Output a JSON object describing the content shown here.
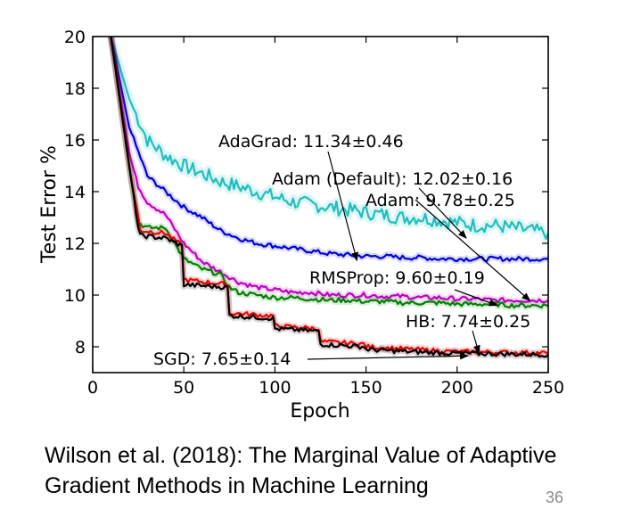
{
  "chart_data": {
    "type": "line",
    "xlabel": "Epoch",
    "ylabel": "Test Error %",
    "xlim": [
      0,
      250
    ],
    "ylim": [
      7,
      20
    ],
    "xticks": [
      "0",
      "50",
      "100",
      "150",
      "200",
      "250"
    ],
    "yticks": [
      "8",
      "10",
      "12",
      "14",
      "16",
      "18",
      "20"
    ],
    "grid": false,
    "series": [
      {
        "color": "#1fbfbf",
        "x": [
          10,
          20,
          30,
          40,
          50,
          60,
          70,
          80,
          90,
          100,
          110,
          120,
          130,
          140,
          150,
          160,
          170,
          180,
          190,
          200,
          210,
          220,
          230,
          240,
          250
        ],
        "y": [
          20,
          17.6,
          16,
          15.4,
          15,
          14.7,
          14.4,
          14.2,
          14,
          13.8,
          13.6,
          13.5,
          13.4,
          13.3,
          13.2,
          13.1,
          13,
          13,
          12.9,
          12.8,
          12.7,
          12.7,
          12.6,
          12.5,
          12.4
        ]
      },
      {
        "color": "#0000e0",
        "x": [
          10,
          20,
          30,
          40,
          50,
          60,
          70,
          80,
          90,
          100,
          110,
          120,
          130,
          140,
          150,
          160,
          170,
          180,
          190,
          200,
          210,
          220,
          230,
          240,
          250
        ],
        "y": [
          20,
          16.5,
          14.6,
          14,
          13.4,
          13,
          12.5,
          12.2,
          12,
          11.9,
          11.8,
          11.7,
          11.6,
          11.55,
          11.5,
          11.5,
          11.45,
          11.45,
          11.4,
          11.4,
          11.4,
          11.4,
          11.4,
          11.4,
          11.4
        ]
      },
      {
        "color": "#c000c0",
        "x": [
          10,
          20,
          25,
          30,
          40,
          50,
          60,
          70,
          75,
          80,
          90,
          100,
          110,
          120,
          130,
          140,
          150,
          160,
          170,
          180,
          190,
          200,
          210,
          220,
          230,
          240,
          250
        ],
        "y": [
          20,
          15.5,
          14.2,
          13.6,
          13.1,
          12,
          11.3,
          10.9,
          10.7,
          10.5,
          10.3,
          10.2,
          10.1,
          10.1,
          10,
          10,
          10,
          9.95,
          9.95,
          9.9,
          9.9,
          9.85,
          9.85,
          9.8,
          9.8,
          9.8,
          9.8
        ]
      },
      {
        "color": "#008000",
        "x": [
          10,
          20,
          25,
          30,
          40,
          50,
          60,
          70,
          75,
          80,
          90,
          100,
          110,
          120,
          130,
          140,
          150,
          160,
          170,
          180,
          190,
          200,
          210,
          220,
          230,
          240,
          250
        ],
        "y": [
          20,
          15,
          12.8,
          12.6,
          12.6,
          11.4,
          11,
          10.8,
          10.3,
          10.1,
          10,
          9.9,
          9.9,
          9.85,
          9.8,
          9.8,
          9.75,
          9.75,
          9.7,
          9.7,
          9.7,
          9.65,
          9.65,
          9.65,
          9.6,
          9.6,
          9.6
        ]
      },
      {
        "color": "#ff0000",
        "x": [
          10,
          20,
          25,
          26,
          40,
          49,
          50,
          74,
          75,
          99,
          100,
          124,
          125,
          149,
          150,
          175,
          200,
          225,
          250
        ],
        "y": [
          20,
          15,
          13,
          12.5,
          12.4,
          11.9,
          10.6,
          10.4,
          9.3,
          9.2,
          8.8,
          8.7,
          8.2,
          8.1,
          8,
          7.9,
          7.8,
          7.78,
          7.76
        ]
      },
      {
        "color": "#000000",
        "x": [
          10,
          20,
          25,
          26,
          40,
          49,
          50,
          74,
          75,
          99,
          100,
          124,
          125,
          149,
          150,
          175,
          200,
          225,
          250
        ],
        "y": [
          20,
          15,
          12.6,
          12.3,
          12.2,
          11.9,
          10.4,
          10.3,
          9.2,
          9.1,
          8.7,
          8.6,
          8.1,
          8,
          7.9,
          7.8,
          7.75,
          7.72,
          7.7
        ]
      }
    ],
    "annotations": [
      {
        "text": "AdaGrad: 11.34±0.46",
        "arrow_to": [
          145,
          11.34
        ]
      },
      {
        "text": "Adam (Default): 12.02±0.16",
        "arrow_to": [
          205,
          12.2
        ]
      },
      {
        "text": "Adam: 9.78±0.25",
        "arrow_to": [
          240,
          9.78
        ]
      },
      {
        "text": "RMSProp: 9.60±0.19",
        "arrow_to": [
          222,
          9.6
        ]
      },
      {
        "text": "HB: 7.74±0.25",
        "arrow_to": [
          212,
          7.74
        ]
      },
      {
        "text": "SGD: 7.65±0.14",
        "arrow_to": [
          206,
          7.65
        ]
      }
    ]
  },
  "caption": {
    "line1": "Wilson et al. (2018): The Marginal Value of Adaptive",
    "line2": "Gradient Methods in Machine Learning"
  },
  "page_number": "36"
}
